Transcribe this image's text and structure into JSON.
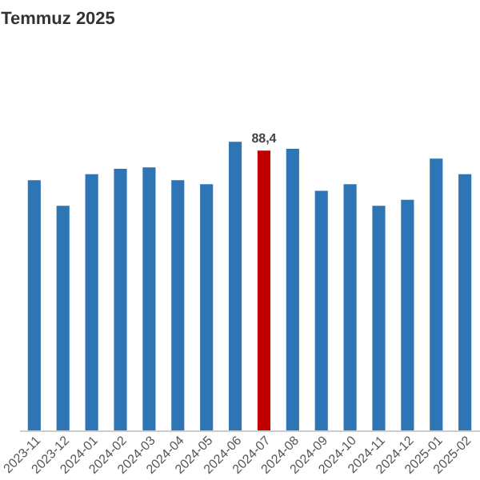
{
  "chart_data": {
    "type": "bar",
    "title": "Temmuz 2025",
    "tick_labels": "x",
    "categories": [
      "2023-11",
      "2023-12",
      "2024-01",
      "2024-02",
      "2024-03",
      "2024-04",
      "2024-05",
      "2024-06",
      "2024-07",
      "2024-08",
      "2024-09",
      "2024-10",
      "2024-11",
      "2024-12",
      "2025-01",
      "2025-02"
    ],
    "values": [
      79.1,
      71.0,
      81.0,
      82.7,
      83.1,
      79.1,
      77.8,
      91.2,
      88.4,
      89.0,
      75.7,
      77.8,
      71.0,
      72.9,
      85.9,
      81.0
    ],
    "colors": [
      "#2e75b6",
      "#2e75b6",
      "#2e75b6",
      "#2e75b6",
      "#2e75b6",
      "#2e75b6",
      "#2e75b6",
      "#2e75b6",
      "#c00000",
      "#2e75b6",
      "#2e75b6",
      "#2e75b6",
      "#2e75b6",
      "#2e75b6",
      "#2e75b6",
      "#2e75b6"
    ],
    "value_labels": [
      null,
      null,
      null,
      null,
      null,
      null,
      null,
      null,
      "88,4",
      null,
      null,
      null,
      null,
      null,
      null,
      null
    ]
  }
}
